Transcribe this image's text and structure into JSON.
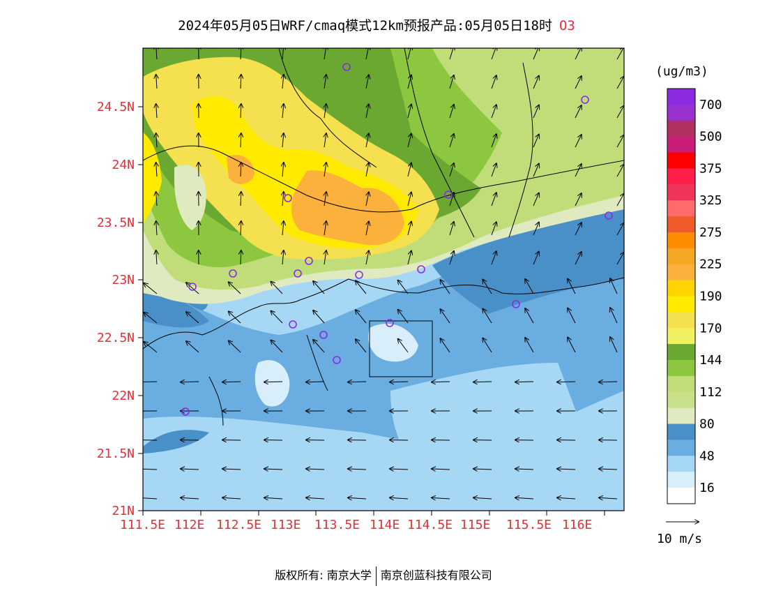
{
  "header": {
    "title": "2024年05月05日WRF/cmaq模式12km预报产品:05月05日18时",
    "species": "O3"
  },
  "axes": {
    "lat_labels": [
      "24.5N",
      "24N",
      "23.5N",
      "23N",
      "22.5N",
      "22N",
      "21.5N",
      "21N"
    ],
    "lon_labels": [
      "111.5E",
      "112E",
      "112.5E",
      "113E",
      "113.5E",
      "114E",
      "114.5E",
      "115E",
      "115.5E",
      "116E"
    ]
  },
  "legend": {
    "unit": "(ug/m3)",
    "labels": [
      "700",
      "500",
      "375",
      "325",
      "275",
      "225",
      "190",
      "170",
      "144",
      "112",
      "80",
      "48",
      "16"
    ],
    "colors": [
      "#8a2be2",
      "#9b30d0",
      "#b03060",
      "#c81e7a",
      "#ff0000",
      "#ff1e4a",
      "#f0345a",
      "#ff6a6a",
      "#f05a28",
      "#ff8c00",
      "#f5a623",
      "#fbb13c",
      "#ffd400",
      "#ffea00",
      "#f5e050",
      "#f0f060",
      "#6aa832",
      "#8dc63f",
      "#c1dd7a",
      "#c8e08a",
      "#dfeac0",
      "#4a90c8",
      "#6aade0",
      "#a6d8f5",
      "#d8eefa",
      "#ffffff"
    ],
    "wind_scale": "10 m/s"
  },
  "footer": {
    "left": "版权所有: 南京大学",
    "right": "南京创蓝科技有限公司"
  }
}
